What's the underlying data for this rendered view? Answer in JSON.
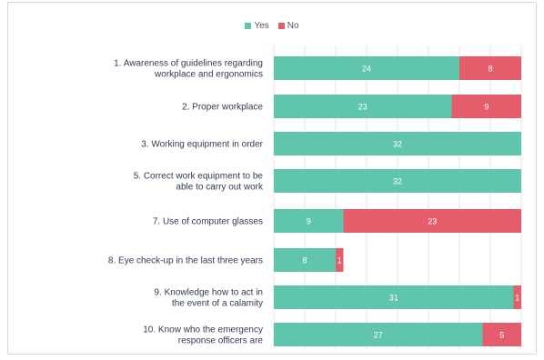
{
  "legend": {
    "yes_label": "Yes",
    "no_label": "No"
  },
  "colors": {
    "yes": "#5fc5ac",
    "no": "#e55d6b",
    "grid": "#e4e4e4"
  },
  "chart_data": {
    "type": "bar",
    "orientation": "horizontal",
    "stacked": true,
    "categories": [
      [
        "1. Awareness of guidelines regarding",
        "workplace and ergonomics"
      ],
      [
        "2. Proper workplace"
      ],
      [
        "3. Working equipment in order"
      ],
      [
        "5. Correct work equipment to be",
        "able to carry out work"
      ],
      [
        "7. Use of computer glasses"
      ],
      [
        "8. Eye check-up in the last three years"
      ],
      [
        "9. Knowledge how to act in",
        "the event of a calamity"
      ],
      [
        "10. Know who the emergency",
        "response officers are"
      ]
    ],
    "series": [
      {
        "name": "Yes",
        "values": [
          24,
          23,
          32,
          32,
          9,
          8,
          31,
          27
        ]
      },
      {
        "name": "No",
        "values": [
          8,
          9,
          0,
          0,
          23,
          1,
          1,
          5
        ]
      }
    ],
    "xlim": [
      0,
      32
    ],
    "legend_position": "top-center",
    "grid": true
  }
}
